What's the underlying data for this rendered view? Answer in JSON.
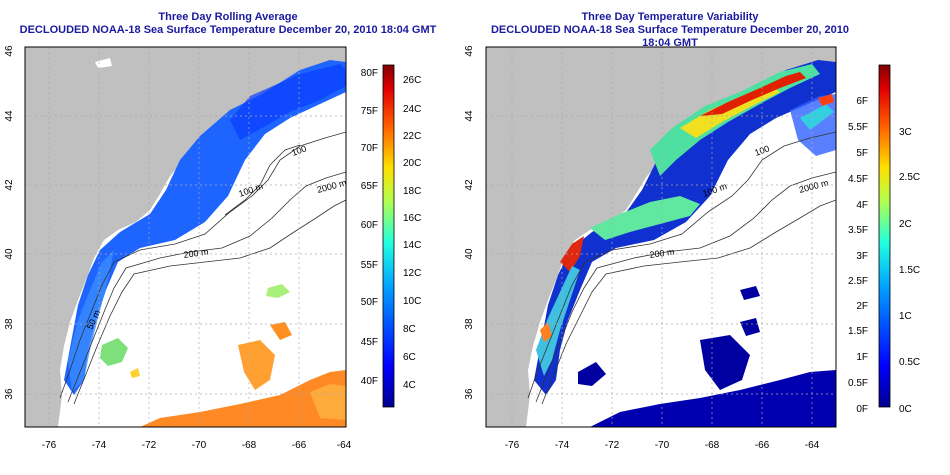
{
  "panels": [
    {
      "title": "Three Day Rolling Average",
      "subtitle": "DECLOUDED NOAA-18 Sea Surface Temperature December 20, 2010 18:04 GMT",
      "x_ticks": [
        "-76",
        "-74",
        "-72",
        "-70",
        "-68",
        "-66",
        "-64"
      ],
      "y_ticks": [
        "36",
        "38",
        "40",
        "42",
        "44",
        "46"
      ],
      "contours": [
        "100",
        "100 m",
        "2000 m",
        "200 m",
        "50 m"
      ],
      "colorbar": {
        "left_labels": [
          "80F",
          "75F",
          "70F",
          "65F",
          "60F",
          "55F",
          "50F",
          "45F",
          "40F"
        ],
        "right_labels": [
          "26C",
          "24C",
          "22C",
          "20C",
          "18C",
          "16C",
          "14C",
          "12C",
          "10C",
          "8C",
          "6C",
          "4C"
        ]
      }
    },
    {
      "title": "Three Day Temperature Variability",
      "subtitle": "DECLOUDED NOAA-18 Sea Surface Temperature December 20, 2010 18:04 GMT",
      "x_ticks": [
        "-76",
        "-74",
        "-72",
        "-70",
        "-68",
        "-66",
        "-64"
      ],
      "y_ticks": [
        "36",
        "38",
        "40",
        "42",
        "44",
        "46"
      ],
      "contours": [
        "100",
        "100 m",
        "2000 m",
        "200 m"
      ],
      "colorbar": {
        "left_labels": [
          "6F",
          "5.5F",
          "5F",
          "4.5F",
          "4F",
          "3.5F",
          "3F",
          "2.5F",
          "2F",
          "1.5F",
          "1F",
          "0.5F",
          "0F"
        ],
        "right_labels": [
          "3C",
          "2.5C",
          "2C",
          "1.5C",
          "1C",
          "0.5C",
          "0C"
        ]
      }
    }
  ],
  "colors": {
    "land": "#c0c0c0",
    "title": "#1a1aa0",
    "ocean": "#ffffff",
    "colorscale": [
      "#00008f",
      "#0000ff",
      "#007fff",
      "#00ffff",
      "#7fff7f",
      "#ffff00",
      "#ff7f00",
      "#ff0000",
      "#800000"
    ]
  }
}
